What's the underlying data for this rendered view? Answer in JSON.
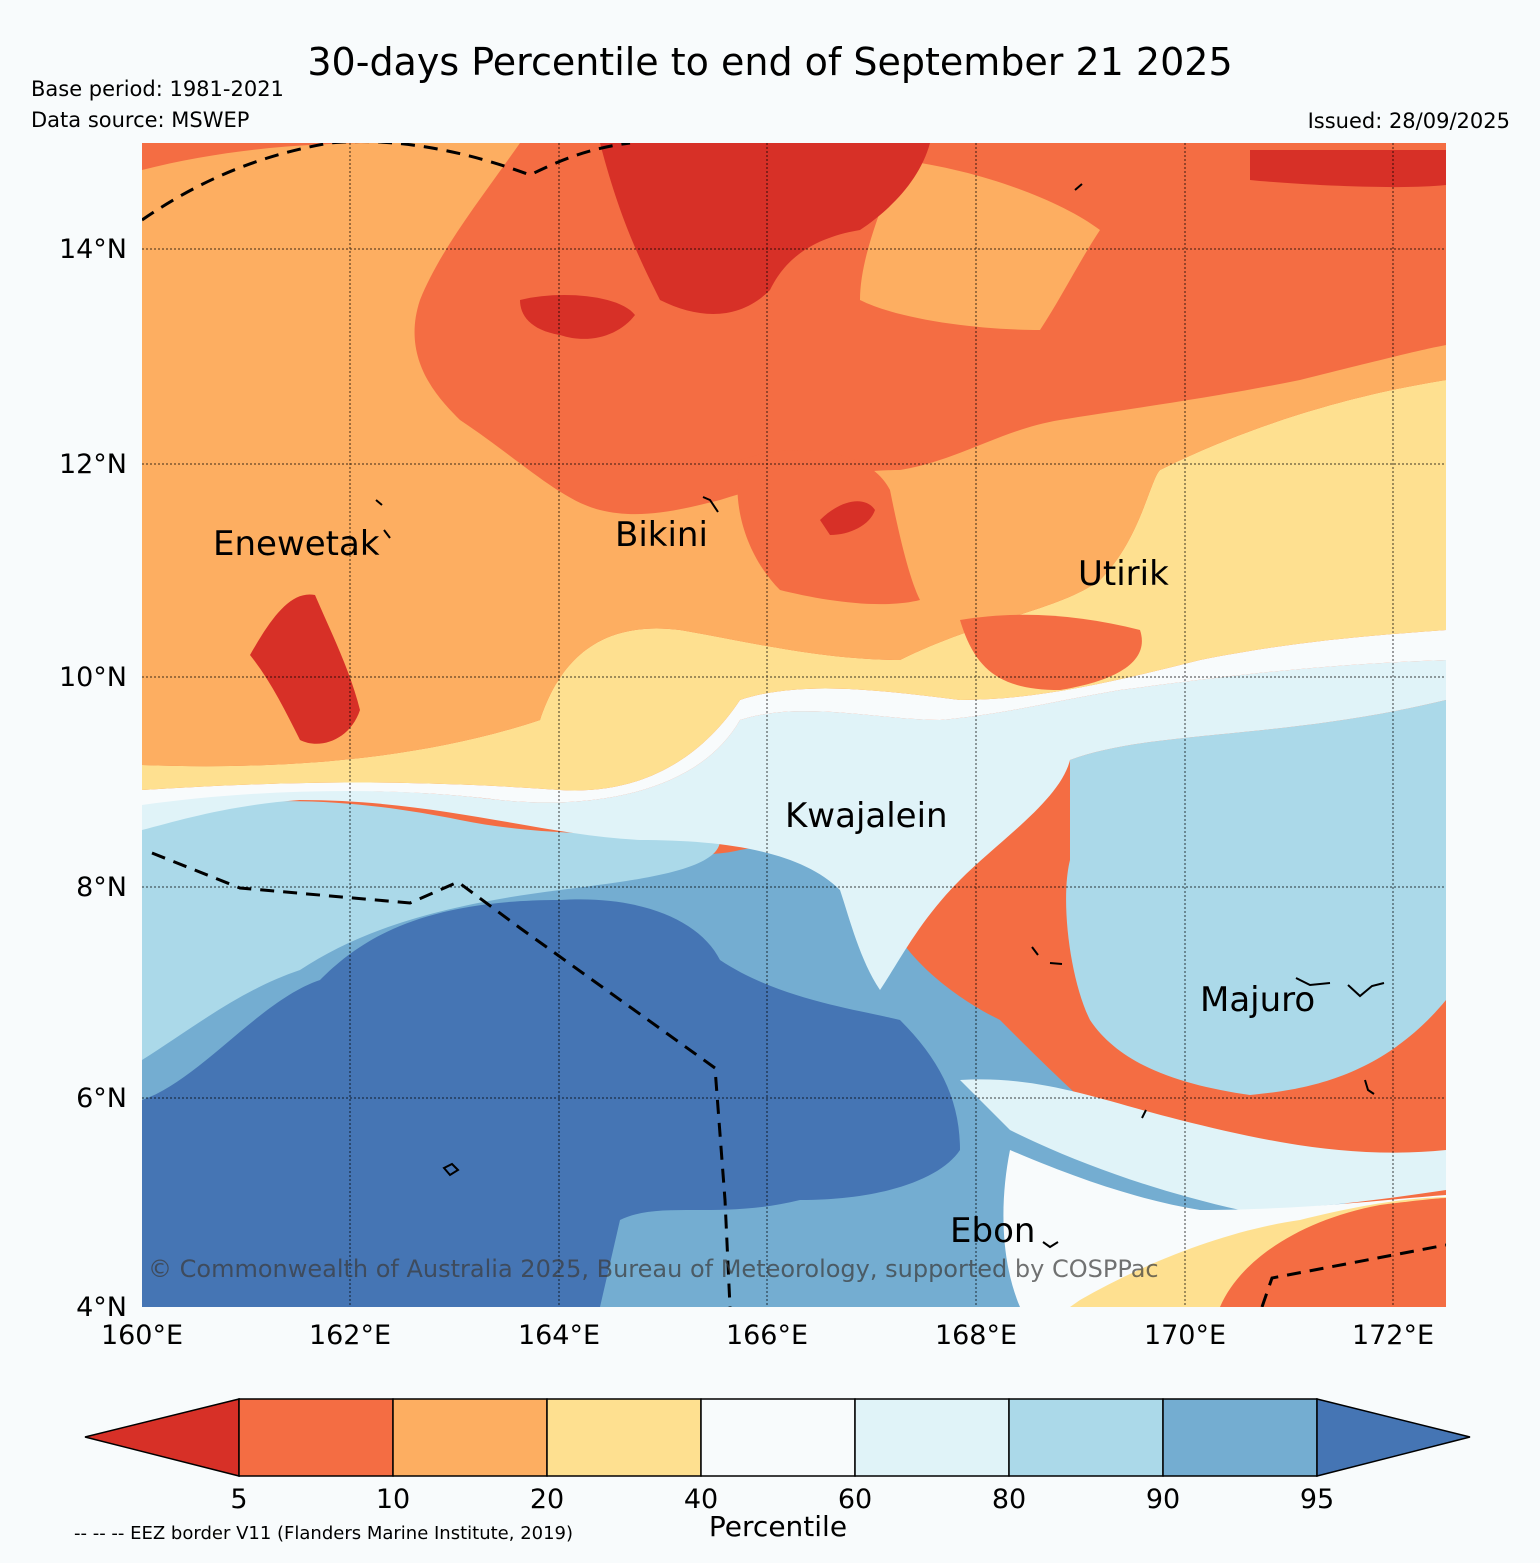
{
  "header": {
    "title": "30-days Percentile to end of September 21 2025",
    "base_period": "Base period: 1981-2021",
    "data_source": "Data source: MSWEP",
    "issued": "Issued: 28/09/2025"
  },
  "map": {
    "lat_ticks": [
      "14°N",
      "12°N",
      "10°N",
      "8°N",
      "6°N",
      "4°N"
    ],
    "lon_ticks": [
      "160°E",
      "162°E",
      "164°E",
      "166°E",
      "168°E",
      "170°E",
      "172°E"
    ],
    "places": {
      "enewetak": "Enewetak",
      "bikini": "Bikini",
      "utirik": "Utirik",
      "kwajalein": "Kwajalein",
      "majuro": "Majuro",
      "ebon": "Ebon"
    },
    "copyright": "© Commonwealth of Australia 2025, Bureau of Meteorology, supported by COSPPac"
  },
  "colorbar": {
    "title": "Percentile",
    "ticks": [
      "5",
      "10",
      "20",
      "40",
      "60",
      "80",
      "90",
      "95"
    ],
    "colors": [
      "#d73027",
      "#f46d43",
      "#fdae61",
      "#fee090",
      "#f8fbfc",
      "#e0f3f8",
      "#abd9e9",
      "#74add1",
      "#4575b4"
    ]
  },
  "footnote": {
    "eez": "-- -- -- EEZ border V11 (Flanders Marine Institute, 2019)"
  }
}
